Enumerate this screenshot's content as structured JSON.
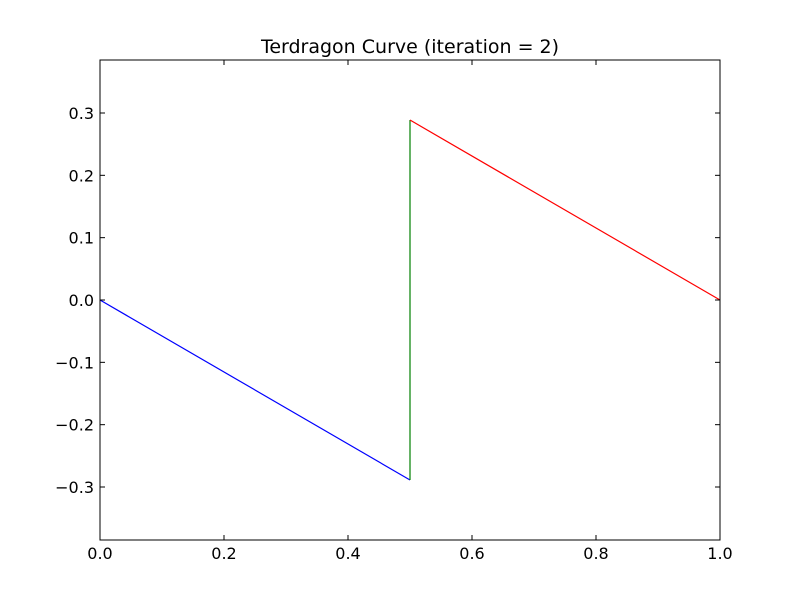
{
  "chart_data": {
    "type": "line",
    "title": "Terdragon Curve  (iteration = 2)",
    "xlabel": "",
    "ylabel": "",
    "xlim": [
      0.0,
      1.0
    ],
    "ylim": [
      -0.385,
      0.385
    ],
    "x_ticks": [
      0.0,
      0.2,
      0.4,
      0.6,
      0.8,
      1.0
    ],
    "x_tick_labels": [
      "0.0",
      "0.2",
      "0.4",
      "0.6",
      "0.8",
      "1.0"
    ],
    "y_ticks": [
      0.3,
      0.2,
      0.1,
      0.0,
      -0.1,
      -0.2,
      -0.3
    ],
    "y_tick_labels": [
      "0.3",
      "0.2",
      "0.1",
      "0.0",
      "−0.1",
      "−0.2",
      "−0.3"
    ],
    "grid": false,
    "legend": "none",
    "series": [
      {
        "color": "#0000ff",
        "x": [
          0.0,
          0.5
        ],
        "y": [
          0.0,
          -0.2887
        ]
      },
      {
        "color": "#008000",
        "x": [
          0.5,
          0.5
        ],
        "y": [
          -0.2887,
          0.2887
        ]
      },
      {
        "color": "#ff0000",
        "x": [
          0.5,
          1.0
        ],
        "y": [
          0.2887,
          0.0
        ]
      }
    ]
  }
}
